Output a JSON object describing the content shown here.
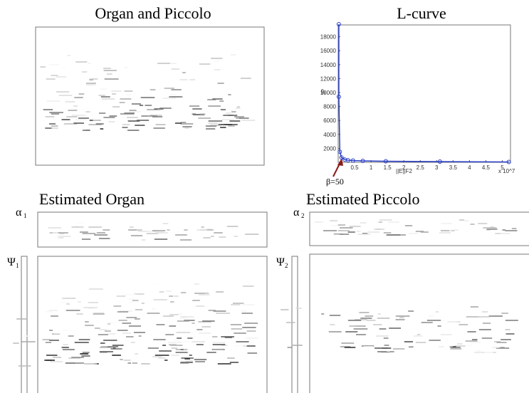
{
  "panels": {
    "mixture": {
      "title": "Organ and Piccolo"
    },
    "organ": {
      "title": "Estimated Organ",
      "alpha": {
        "symbol": "α",
        "index": "1"
      },
      "psi": {
        "symbol": "Ψ",
        "index": "1"
      }
    },
    "piccolo": {
      "title": "Estimated Piccolo",
      "alpha": {
        "symbol": "α",
        "index": "2"
      },
      "psi": {
        "symbol": "Ψ",
        "index": "2"
      }
    }
  },
  "chart_data": {
    "type": "line",
    "title": "L-curve",
    "x_label": "||E||F2",
    "x_multiplier": "x 10^7",
    "y_label": "lP",
    "annotation": "β=50",
    "x": [
      0.02,
      0.02,
      0.05,
      0.1,
      0.2,
      0.3,
      0.45,
      0.75,
      1.45,
      3.1,
      5.2
    ],
    "series": [
      {
        "color": "#2a3fc8",
        "values": [
          19800,
          9400,
          1500,
          700,
          400,
          300,
          250,
          200,
          150,
          100,
          50
        ]
      }
    ],
    "xlim": [
      0,
      5.25
    ],
    "ylim": [
      0,
      19700
    ],
    "xticks": [
      0.5,
      1,
      1.5,
      2,
      2.5,
      3,
      3.5,
      4,
      4.5,
      5
    ],
    "yticks": [
      2000,
      4000,
      6000,
      8000,
      10000,
      12000,
      14000,
      16000,
      18000
    ]
  }
}
